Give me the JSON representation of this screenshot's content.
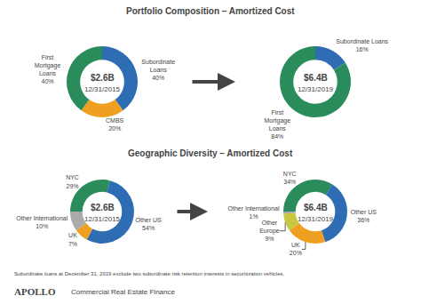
{
  "chart_data": [
    {
      "type": "pie",
      "title": "Portfolio Composition – Amortized Cost",
      "annotations": [
        "$2.6B",
        "12/31/2015"
      ],
      "values": [
        40,
        20,
        40
      ],
      "value_labels": [
        "Subordinate\nLoans\n40%",
        "CMBS\n20%",
        "First\nMortgage\nLoans\n40%"
      ],
      "colors": [
        "#2e6db4",
        "#f0a020",
        "#2a8c5a"
      ],
      "data_labels": true
    },
    {
      "type": "pie",
      "annotations": [
        "$6.4B",
        "12/31/2019"
      ],
      "values": [
        16,
        84
      ],
      "value_labels": [
        "Subordinate Loans\n16%",
        "First\nMortgage\nLoans\n84%"
      ],
      "colors": [
        "#2e6db4",
        "#2a8c5a"
      ],
      "data_labels": true
    },
    {
      "type": "pie",
      "title": "Geographic Diversity – Amortized Cost",
      "annotations": [
        "$2.6B",
        "12/31/2015"
      ],
      "values": [
        29,
        54,
        7,
        10
      ],
      "value_labels": [
        "NYC\n29%",
        "Other US\n54%",
        "UK\n7%",
        "Other International\n10%"
      ],
      "colors": [
        "#2a8c5a",
        "#2e6db4",
        "#f0a020",
        "#aaaaaa"
      ],
      "data_labels": true
    },
    {
      "type": "pie",
      "annotations": [
        "$6.4B",
        "12/31/2019"
      ],
      "values": [
        34,
        36,
        20,
        9,
        1
      ],
      "value_labels": [
        "NYC\n34%",
        "Other US\n36%",
        "UK\n20%",
        "Other\nEurope\n9%",
        "Other International\n1%"
      ],
      "colors": [
        "#2a8c5a",
        "#2e6db4",
        "#f0a020",
        "#c8c840",
        "#aaaaaa"
      ],
      "data_labels": true
    }
  ],
  "annotations": [
    "Subordinate loans at December 31, 2019 exclude two subordinate risk retention interests in securitization vehicles.",
    "APOLLO",
    "Commercial Real Estate Finance"
  ]
}
